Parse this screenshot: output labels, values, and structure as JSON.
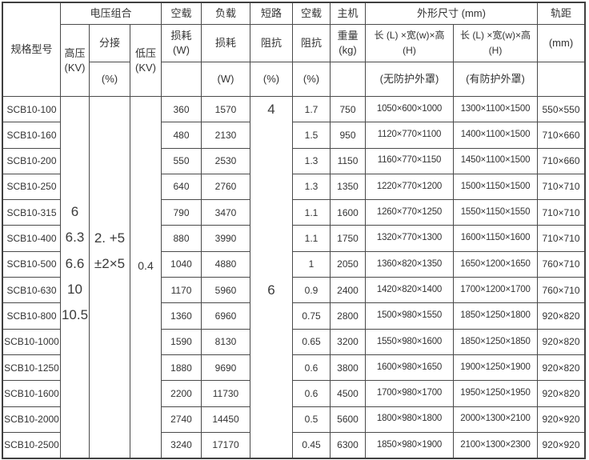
{
  "table": {
    "header": {
      "model": "规格型号",
      "voltage_group": "电压组合",
      "hv": "高压",
      "hv_unit": "(KV)",
      "tap": "分接",
      "tap_unit": "(%)",
      "lv": "低压",
      "lv_unit": "(KV)",
      "no_load": "空载",
      "loss": "损耗",
      "loss_w": "损耗 (W)",
      "w_unit": "(W)",
      "load": "负载",
      "short_circuit": "短路",
      "impedance": "阻抗",
      "pct_unit": "(%)",
      "host": "主机",
      "weight": "重量",
      "kg_unit": "(kg)",
      "dims_title": "外形尺寸 (mm)",
      "dims_lwh": "长 (L) ×宽(w)×高 (H)",
      "dims_no_cover": "(无防护外罩)",
      "dims_with_cover": "(有防护外罩)",
      "gauge": "轨距",
      "mm_unit": "(mm)"
    },
    "merged": {
      "hv_values": [
        "6",
        "6.3",
        "6.6",
        "10",
        "10.5"
      ],
      "tap_lines": [
        "2. +5",
        "±2×5"
      ],
      "lv_value": "0.4",
      "impedance_top": "4",
      "impedance_bottom": "6"
    },
    "rows": [
      {
        "model": "SCB10-100",
        "no_load_loss": "360",
        "load_loss": "1570",
        "no_load_current": "1.7",
        "weight": "750",
        "dims_open": "1050×600×1000",
        "dims_enclosed": "1300×1100×1500",
        "gauge": "550×550"
      },
      {
        "model": "SCB10-160",
        "no_load_loss": "480",
        "load_loss": "2130",
        "no_load_current": "1.5",
        "weight": "950",
        "dims_open": "1120×770×1100",
        "dims_enclosed": "1400×1100×1500",
        "gauge": "710×660"
      },
      {
        "model": "SCB10-200",
        "no_load_loss": "550",
        "load_loss": "2530",
        "no_load_current": "1.3",
        "weight": "1150",
        "dims_open": "1160×770×1150",
        "dims_enclosed": "1450×1100×1500",
        "gauge": "710×660"
      },
      {
        "model": "SCB10-250",
        "no_load_loss": "640",
        "load_loss": "2760",
        "no_load_current": "1.3",
        "weight": "1350",
        "dims_open": "1220×770×1200",
        "dims_enclosed": "1500×1150×1500",
        "gauge": "710×710"
      },
      {
        "model": "SCB10-315",
        "no_load_loss": "790",
        "load_loss": "3470",
        "no_load_current": "1.1",
        "weight": "1600",
        "dims_open": "1260×770×1250",
        "dims_enclosed": "1550×1150×1550",
        "gauge": "710×710"
      },
      {
        "model": "SCB10-400",
        "no_load_loss": "880",
        "load_loss": "3990",
        "no_load_current": "1.1",
        "weight": "1750",
        "dims_open": "1320×770×1300",
        "dims_enclosed": "1600×1150×1600",
        "gauge": "710×710"
      },
      {
        "model": "SCB10-500",
        "no_load_loss": "1040",
        "load_loss": "4880",
        "no_load_current": "1",
        "weight": "2050",
        "dims_open": "1360×820×1350",
        "dims_enclosed": "1650×1200×1650",
        "gauge": "760×710"
      },
      {
        "model": "SCB10-630",
        "no_load_loss": "1170",
        "load_loss": "5960",
        "no_load_current": "0.9",
        "weight": "2400",
        "dims_open": "1420×820×1400",
        "dims_enclosed": "1700×1200×1700",
        "gauge": "760×710"
      },
      {
        "model": "SCB10-800",
        "no_load_loss": "1360",
        "load_loss": "6960",
        "no_load_current": "0.75",
        "weight": "2800",
        "dims_open": "1500×980×1550",
        "dims_enclosed": "1850×1250×1800",
        "gauge": "920×820"
      },
      {
        "model": "SCB10-1000",
        "no_load_loss": "1590",
        "load_loss": "8130",
        "no_load_current": "0.65",
        "weight": "3200",
        "dims_open": "1550×980×1600",
        "dims_enclosed": "1850×1250×1850",
        "gauge": "920×820"
      },
      {
        "model": "SCB10-1250",
        "no_load_loss": "1880",
        "load_loss": "9690",
        "no_load_current": "0.6",
        "weight": "3800",
        "dims_open": "1600×980×1650",
        "dims_enclosed": "1900×1250×1900",
        "gauge": "920×820"
      },
      {
        "model": "SCB10-1600",
        "no_load_loss": "2200",
        "load_loss": "11730",
        "no_load_current": "0.6",
        "weight": "4500",
        "dims_open": "1700×980×1700",
        "dims_enclosed": "1950×1250×1950",
        "gauge": "920×820"
      },
      {
        "model": "SCB10-2000",
        "no_load_loss": "2740",
        "load_loss": "14450",
        "no_load_current": "0.5",
        "weight": "5600",
        "dims_open": "1800×980×1800",
        "dims_enclosed": "2000×1300×2100",
        "gauge": "920×920"
      },
      {
        "model": "SCB10-2500",
        "no_load_loss": "3240",
        "load_loss": "17170",
        "no_load_current": "0.45",
        "weight": "6300",
        "dims_open": "1850×980×1900",
        "dims_enclosed": "2100×1300×2300",
        "gauge": "920×920"
      }
    ]
  },
  "colors": {
    "border": "#3f3f3f",
    "text": "#333333",
    "background": "#ffffff"
  }
}
